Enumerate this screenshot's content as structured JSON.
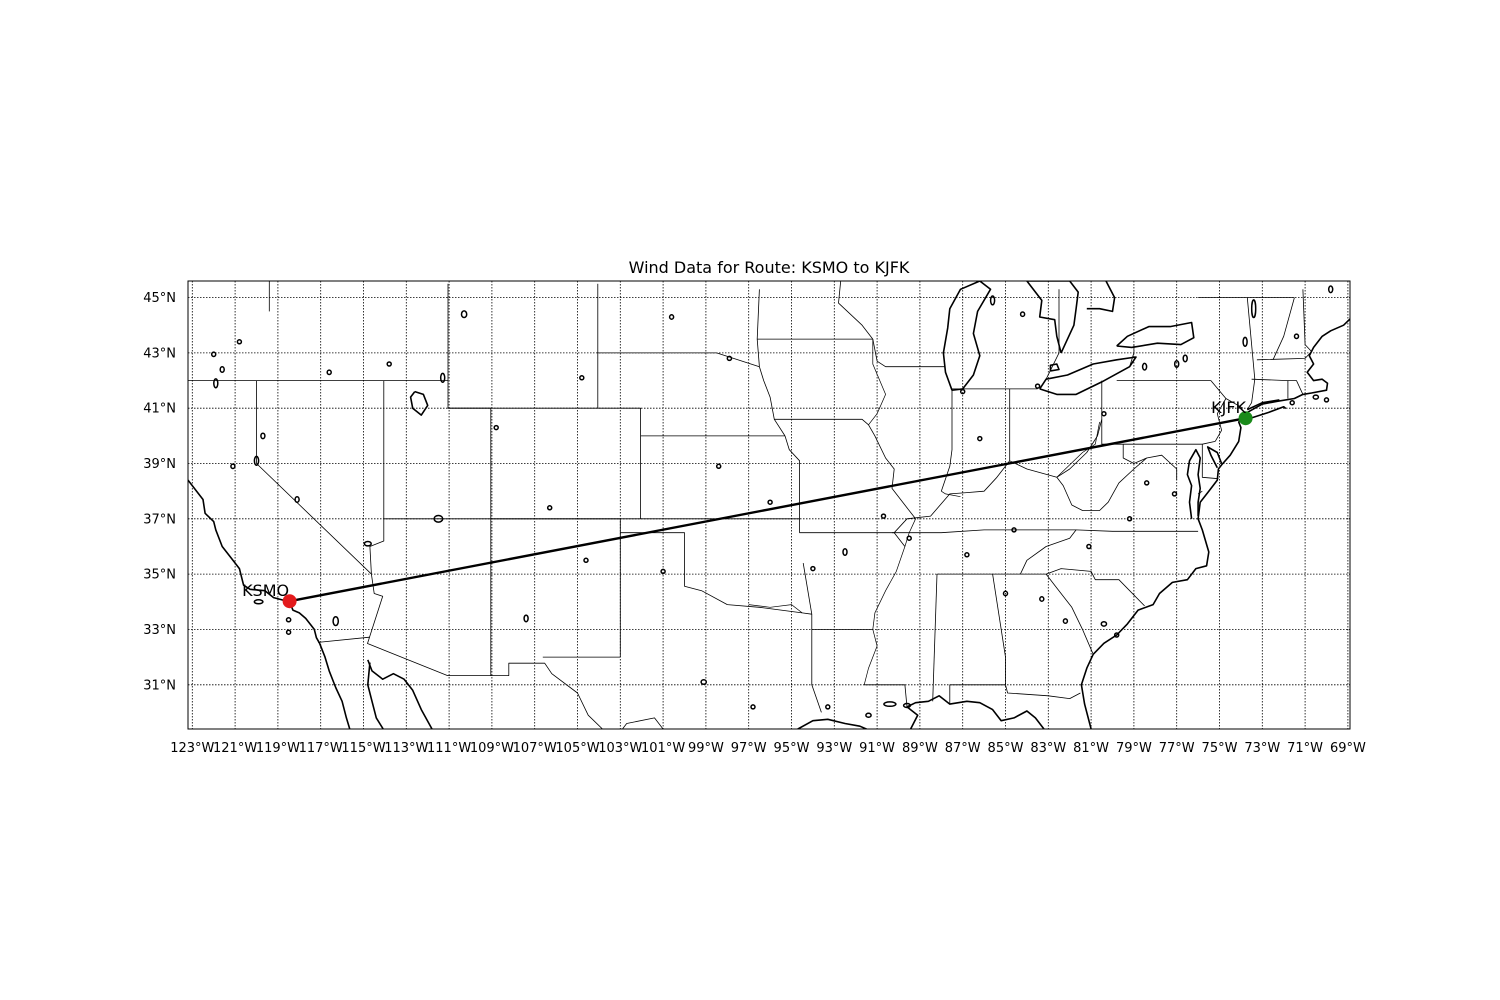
{
  "title": "Wind Data for Route: KSMO to KJFK",
  "map": {
    "projection": "plate-carree",
    "lon_range": [
      -123.2,
      -68.9
    ],
    "lat_range": [
      29.4,
      45.6
    ],
    "gridlines": "dotted",
    "lon_ticks": [
      -123,
      -121,
      -119,
      -117,
      -115,
      -113,
      -111,
      -109,
      -107,
      -105,
      -103,
      -101,
      -99,
      -97,
      -95,
      -93,
      -91,
      -89,
      -87,
      -85,
      -83,
      -81,
      -79,
      -77,
      -75,
      -73,
      -71,
      -69
    ],
    "lon_tick_labels": [
      "123°W",
      "121°W",
      "119°W",
      "117°W",
      "115°W",
      "113°W",
      "111°W",
      "109°W",
      "107°W",
      "105°W",
      "103°W",
      "101°W",
      "99°W",
      "97°W",
      "95°W",
      "93°W",
      "91°W",
      "89°W",
      "87°W",
      "85°W",
      "83°W",
      "81°W",
      "79°W",
      "77°W",
      "75°W",
      "73°W",
      "71°W",
      "69°W"
    ],
    "lat_ticks": [
      31,
      33,
      35,
      37,
      39,
      41,
      43,
      45
    ],
    "lat_tick_labels": [
      "31°N",
      "33°N",
      "35°N",
      "37°N",
      "39°N",
      "41°N",
      "43°N",
      "45°N"
    ]
  },
  "route": {
    "origin": {
      "code": "KSMO",
      "lon": -118.45,
      "lat": 34.02,
      "color": "#e31a1c"
    },
    "destination": {
      "code": "KJFK",
      "lon": -73.78,
      "lat": 40.64,
      "color": "#1a8a1a"
    },
    "line_color": "#000000"
  },
  "features": {
    "coastline_color": "#000000",
    "border_color": "#000000"
  }
}
